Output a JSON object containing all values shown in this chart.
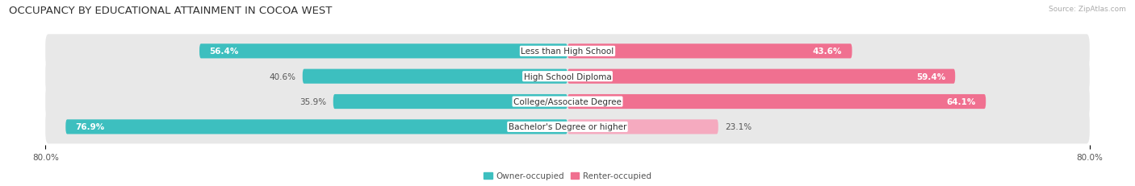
{
  "title": "OCCUPANCY BY EDUCATIONAL ATTAINMENT IN COCOA WEST",
  "source": "Source: ZipAtlas.com",
  "categories": [
    "Less than High School",
    "High School Diploma",
    "College/Associate Degree",
    "Bachelor's Degree or higher"
  ],
  "owner_values": [
    56.4,
    40.6,
    35.9,
    76.9
  ],
  "renter_values": [
    43.6,
    59.4,
    64.1,
    23.1
  ],
  "owner_color": "#3DBFBF",
  "renter_color_strong": "#F07090",
  "renter_color_light": "#F5AABF",
  "owner_label": "Owner-occupied",
  "renter_label": "Renter-occupied",
  "max_val": 80.0,
  "bg_color": "#ffffff",
  "row_bg_color": "#e8e8e8",
  "title_fontsize": 9.5,
  "label_fontsize": 7.5,
  "value_fontsize": 7.5,
  "bar_height": 0.58,
  "axis_label_left": "80.0%",
  "axis_label_right": "80.0%"
}
